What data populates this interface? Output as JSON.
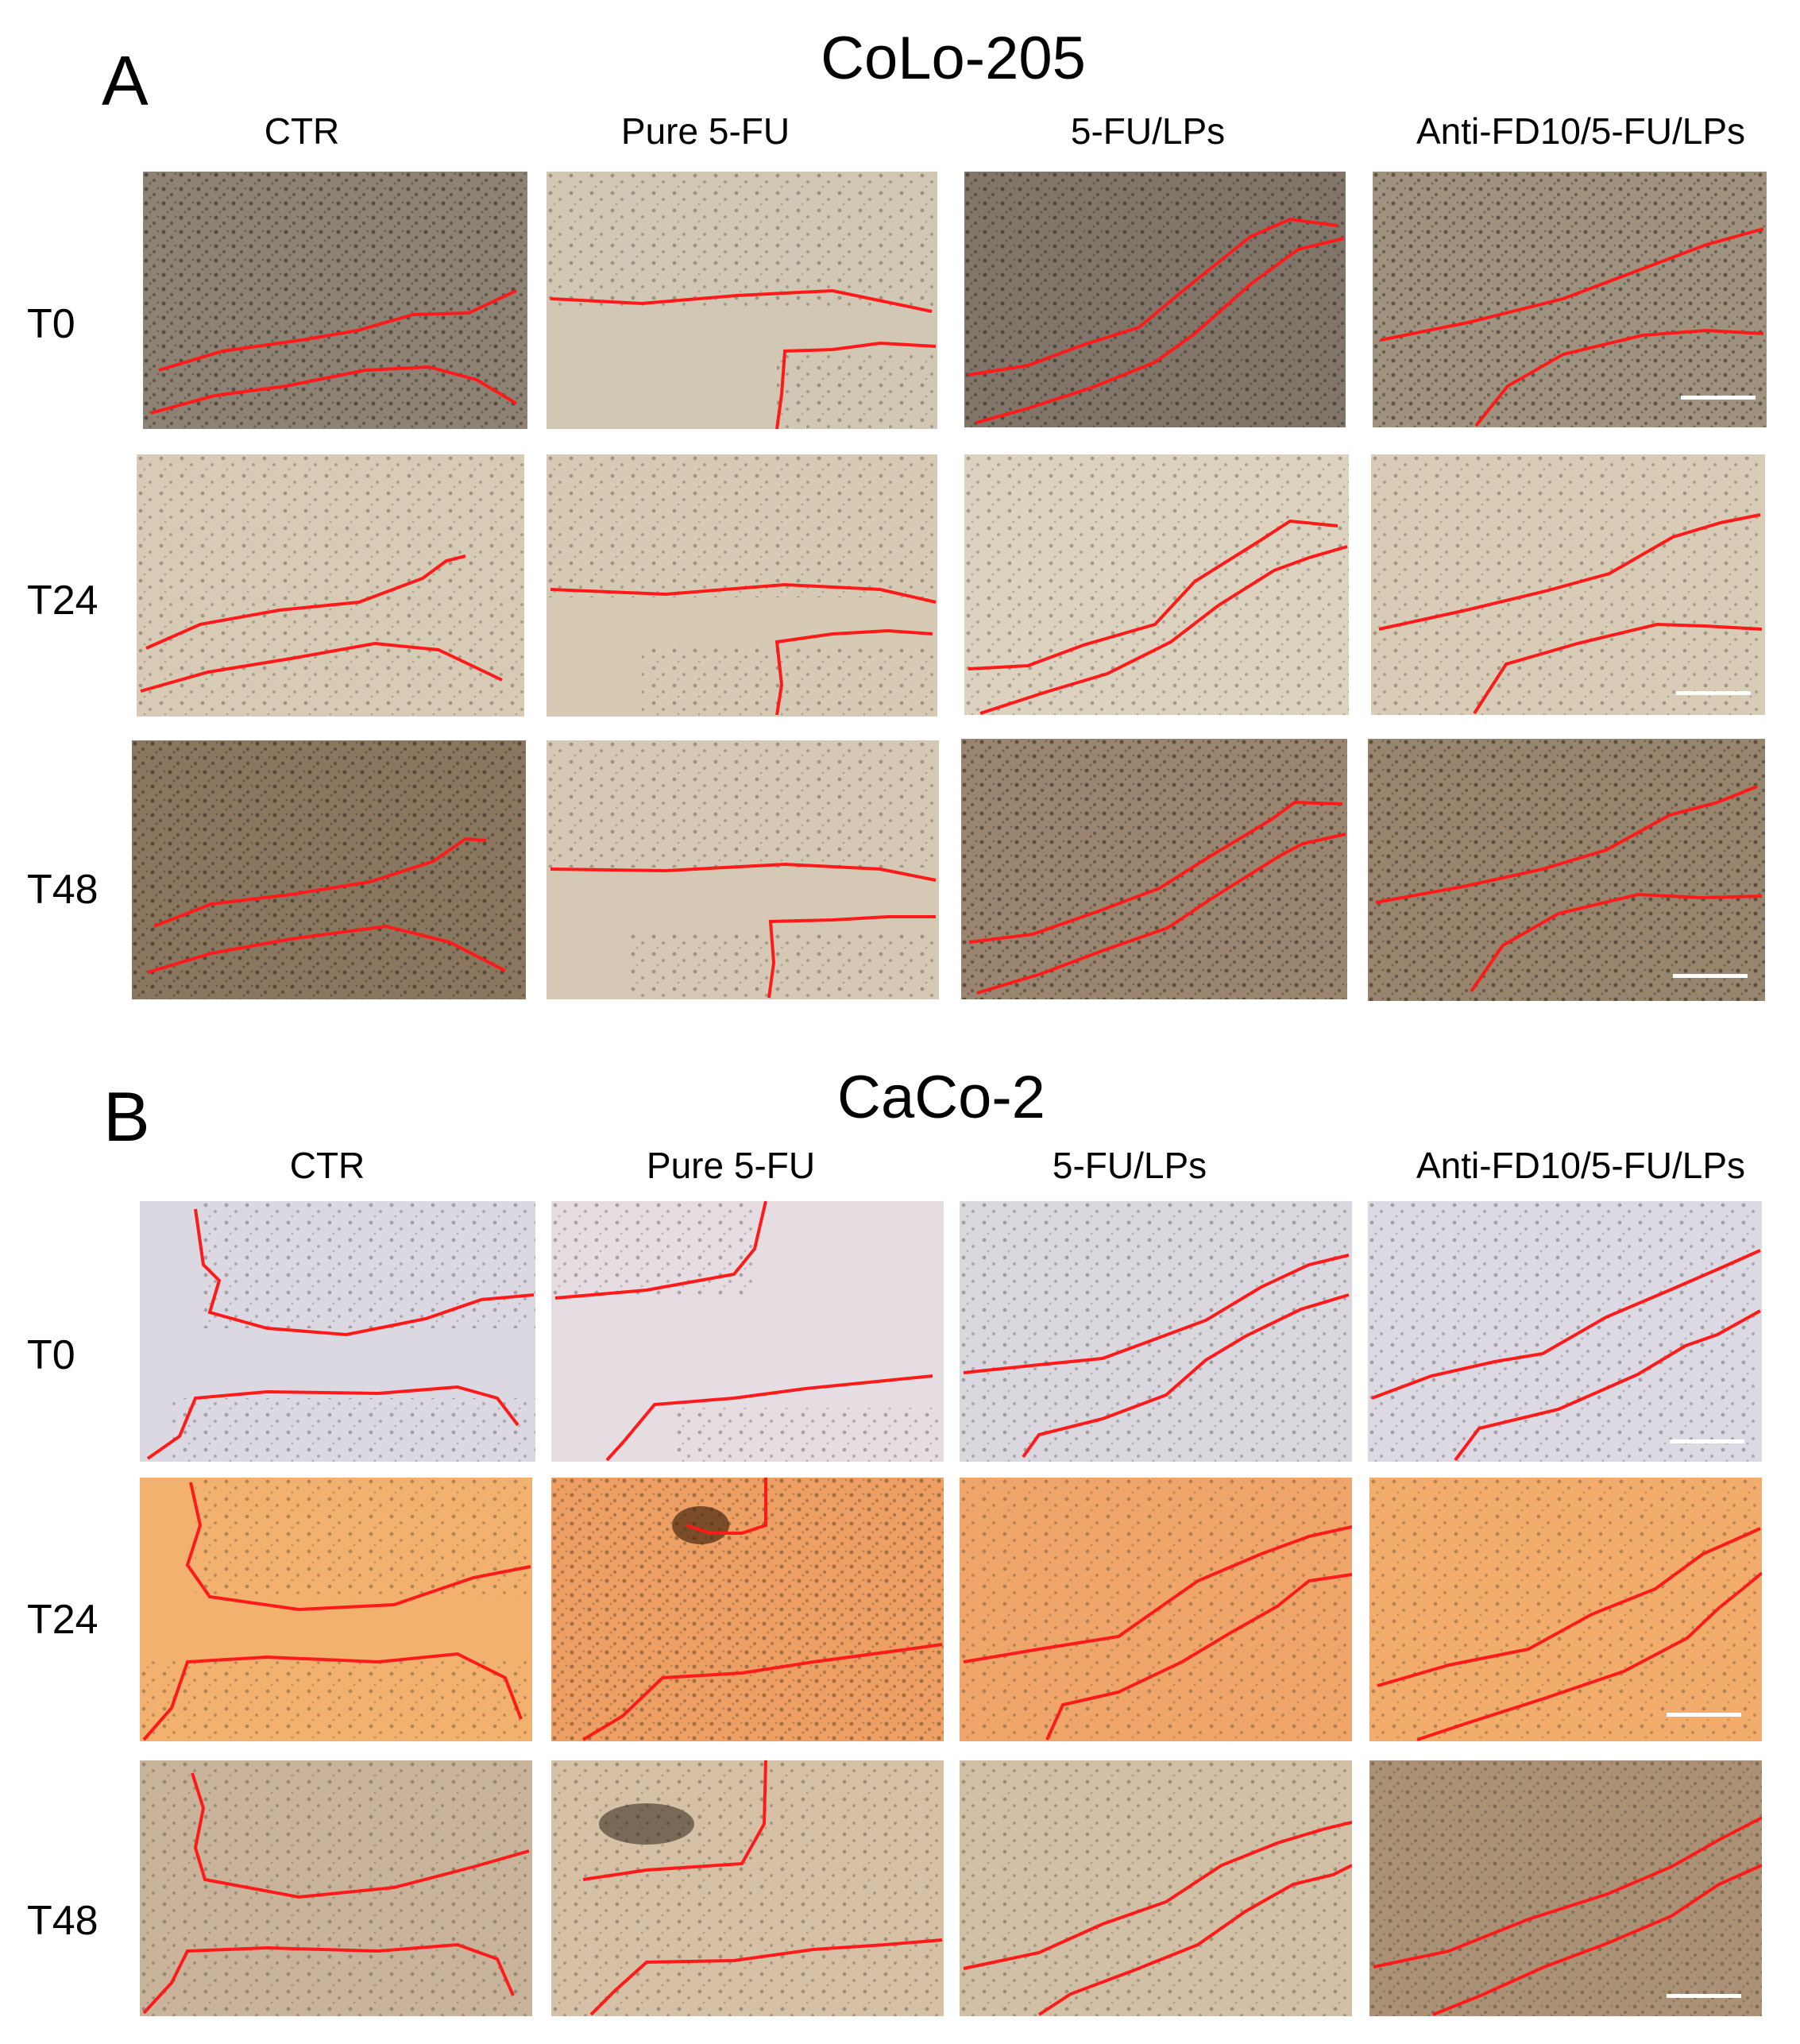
{
  "figure": {
    "sections": [
      {
        "letter": "A",
        "title": "CoLo-205",
        "columns": [
          "CTR",
          "Pure 5-FU",
          "5-FU/LPs",
          "Anti-FD10/5-FU/LPs"
        ],
        "rows": [
          "T0",
          "T24",
          "T48"
        ]
      },
      {
        "letter": "B",
        "title": "CaCo-2",
        "columns": [
          "CTR",
          "Pure 5-FU",
          "5-FU/LPs",
          "Anti-FD10/5-FU/LPs"
        ],
        "rows": [
          "T0",
          "T24",
          "T48"
        ]
      }
    ],
    "colors": {
      "wound_edge": "#ff1a1a",
      "scale_bar": "#ffffff",
      "colo_t0": "#8d8274",
      "colo_t24": "#d8cbb6",
      "colo_t48": "#8a7760",
      "caco_t0": "#dcd8e2",
      "caco_t24": "#f0a868",
      "caco_t48": "#c9b49b"
    },
    "panel_content": "phase-contrast micrographs of cell monolayer with red wound-edge tracings; scale bar on rightmost column"
  }
}
